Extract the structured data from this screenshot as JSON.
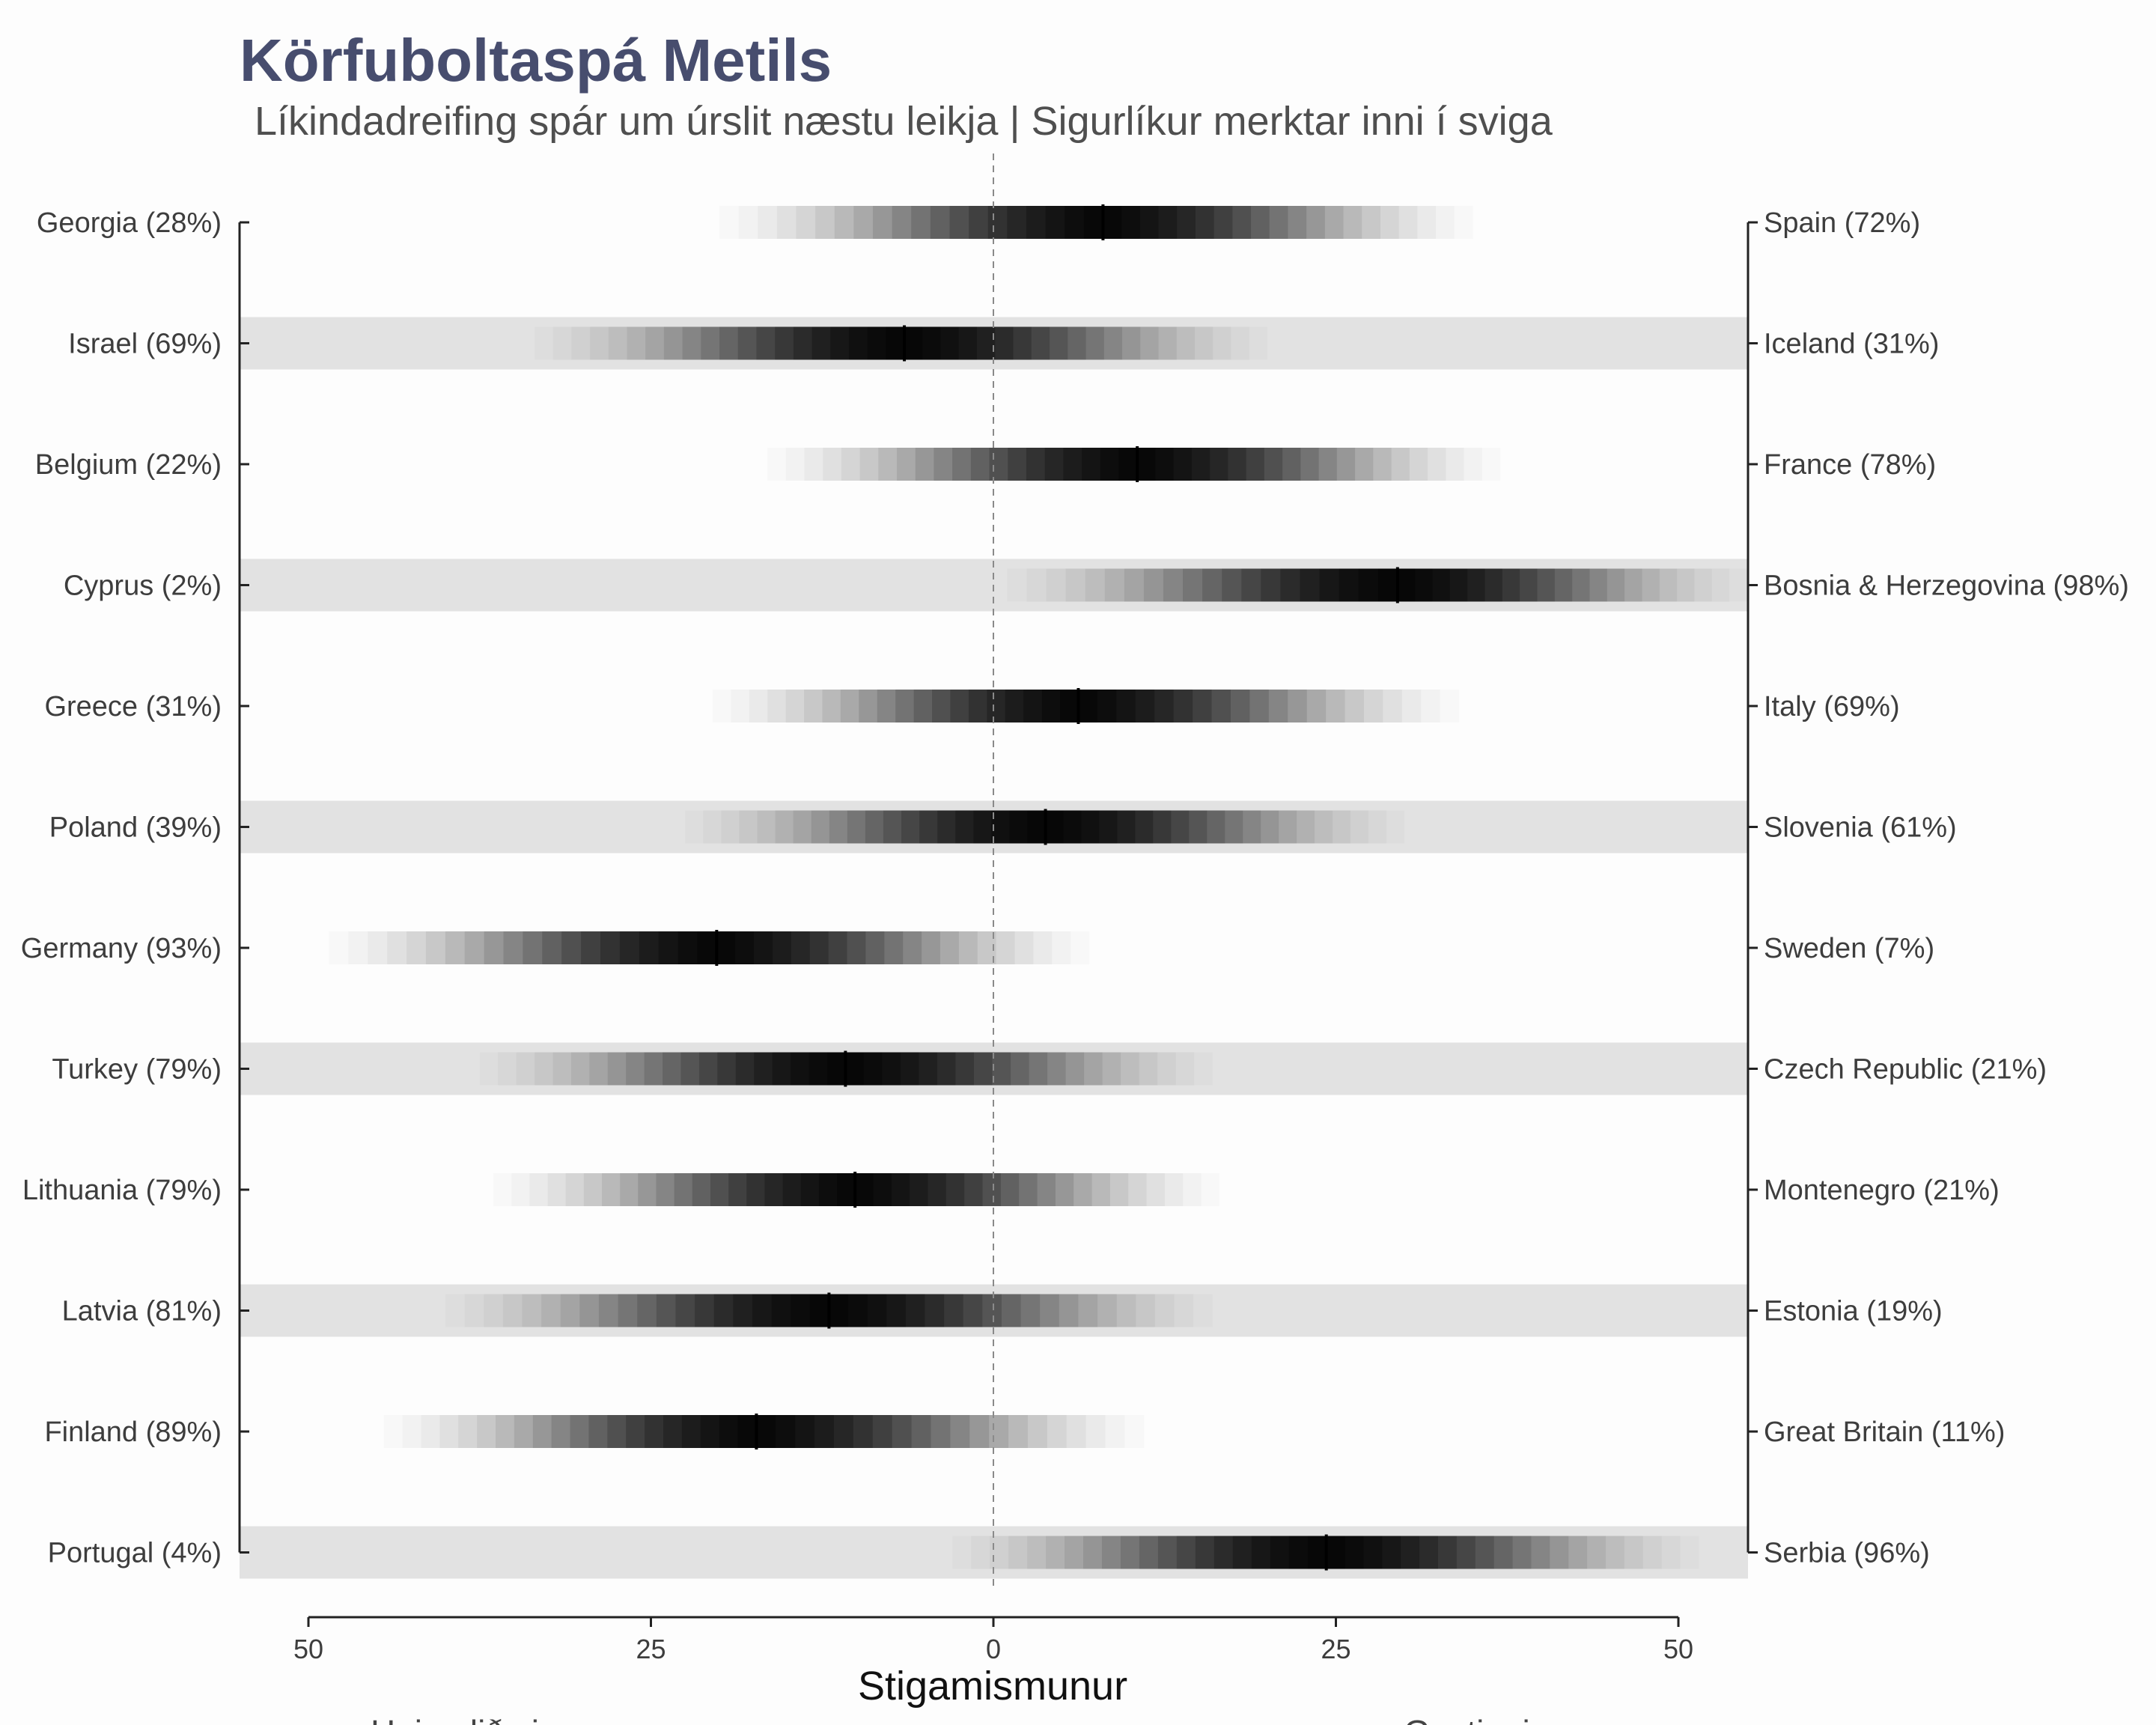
{
  "chart_data": {
    "type": "interval",
    "title": "Körfuboltaspá Metils",
    "subtitle": "Líkindadreifing spár um úrslit næstu leikja | Sigurlíkur merktar inni í sviga",
    "xlabel": "Stigamismunur",
    "x_tick_labels": [
      "50",
      "25",
      "0",
      "25",
      "50"
    ],
    "x_ticks": [
      -50,
      -25,
      0,
      25,
      50
    ],
    "xlim": [
      -55,
      55
    ],
    "bottom_captions": [
      "Heimalið sigrar",
      "Gestir sigra"
    ],
    "games": [
      {
        "left": "Georgia (28%)",
        "right": "Spain (72%)",
        "median": 8,
        "lo": -20,
        "hi": 35
      },
      {
        "left": "Israel (69%)",
        "right": "Iceland (31%)",
        "median": -6.5,
        "lo": -33.5,
        "hi": 20
      },
      {
        "left": "Belgium (22%)",
        "right": "France (78%)",
        "median": 10.5,
        "lo": -16.5,
        "hi": 37
      },
      {
        "left": "Cyprus (2%)",
        "right": "Bosnia & Herzegovina (98%)",
        "median": 29.5,
        "lo": 1,
        "hi": 55
      },
      {
        "left": "Greece (31%)",
        "right": "Italy (69%)",
        "median": 6.2,
        "lo": -20.5,
        "hi": 34
      },
      {
        "left": "Poland (39%)",
        "right": "Slovenia (61%)",
        "median": 3.8,
        "lo": -22.5,
        "hi": 30
      },
      {
        "left": "Germany (93%)",
        "right": "Sweden (7%)",
        "median": -20.2,
        "lo": -48.5,
        "hi": 7
      },
      {
        "left": "Turkey (79%)",
        "right": "Czech Republic (21%)",
        "median": -10.8,
        "lo": -37.5,
        "hi": 16
      },
      {
        "left": "Lithuania (79%)",
        "right": "Montenegro (21%)",
        "median": -10.1,
        "lo": -36.5,
        "hi": 16.5
      },
      {
        "left": "Latvia (81%)",
        "right": "Estonia (19%)",
        "median": -12,
        "lo": -40,
        "hi": 16
      },
      {
        "left": "Finland (89%)",
        "right": "Great Britain (11%)",
        "median": -17.3,
        "lo": -44.5,
        "hi": 11
      },
      {
        "left": "Portugal (4%)",
        "right": "Serbia (96%)",
        "median": 24.3,
        "lo": -3,
        "hi": 51.5
      }
    ]
  }
}
